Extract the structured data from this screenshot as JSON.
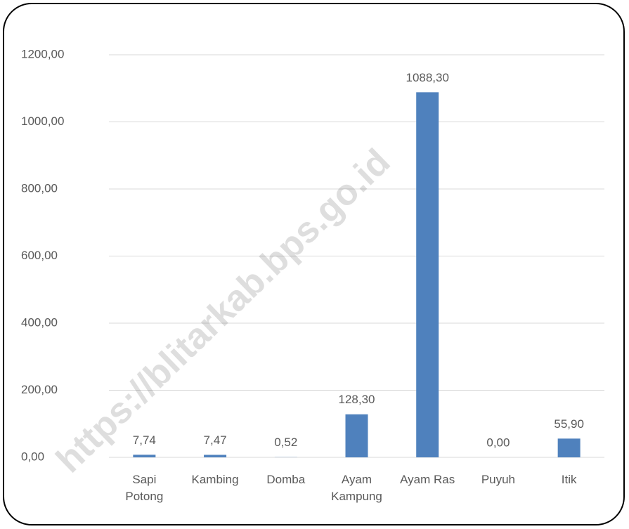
{
  "chart_data": {
    "type": "bar",
    "watermark": "https://blitarkab.bps.go.id",
    "categories": [
      "Sapi Potong",
      "Kambing",
      "Domba",
      "Ayam Kampung",
      "Ayam Ras",
      "Puyuh",
      "Itik"
    ],
    "values": [
      7.74,
      7.47,
      0.52,
      128.3,
      1088.3,
      0.0,
      55.9
    ],
    "value_labels": [
      "7,74",
      "7,47",
      "0,52",
      "128,30",
      "1088,30",
      "0,00",
      "55,90"
    ],
    "color": "#4f81bd",
    "ylim": [
      0,
      1200
    ],
    "yticks": [
      {
        "value": 0,
        "label": "0,00"
      },
      {
        "value": 200,
        "label": "200,00"
      },
      {
        "value": 400,
        "label": "400,00"
      },
      {
        "value": 600,
        "label": "600,00"
      },
      {
        "value": 800,
        "label": "800,00"
      },
      {
        "value": 1000,
        "label": "1000,00"
      },
      {
        "value": 1200,
        "label": "1200,00"
      }
    ],
    "grid": true
  }
}
